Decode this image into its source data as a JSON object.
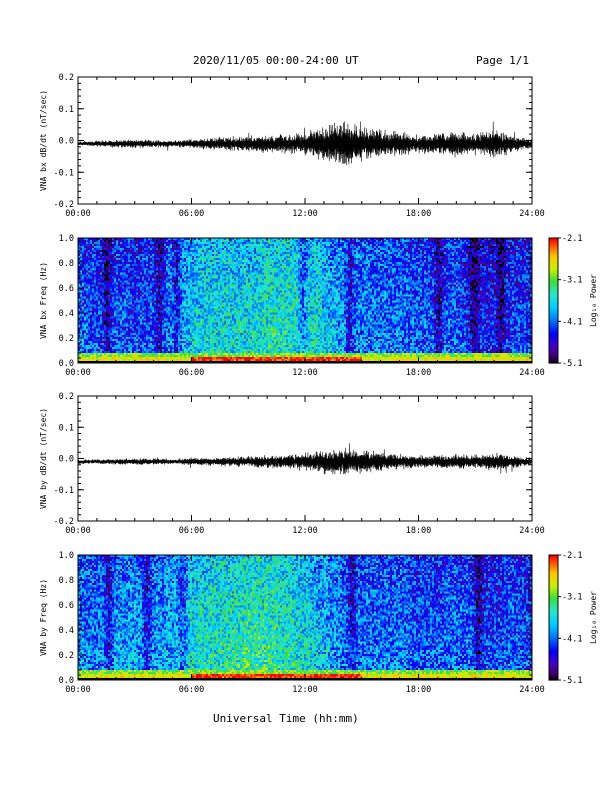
{
  "header": {
    "date_range": "2020/11/05  00:00-24:00 UT",
    "page": "Page 1/1"
  },
  "x_axis": {
    "title": "Universal Time (hh:mm)",
    "ticks": [
      0,
      6,
      12,
      18,
      24
    ],
    "tick_labels": [
      "00:00",
      "06:00",
      "12:00",
      "18:00",
      "24:00"
    ],
    "range": [
      0,
      24
    ]
  },
  "colorbar": {
    "label": "Log₁₀ Power",
    "ticks": [
      -2.1,
      -3.1,
      -4.1,
      -5.1
    ],
    "tick_labels": [
      "-2.1",
      "-3.1",
      "-4.1",
      "-5.1"
    ],
    "range": [
      -5.1,
      -2.1
    ]
  },
  "chart_data": [
    {
      "type": "line",
      "ylabel": "VNA bx dB/dt (nT/sec)",
      "ylim": [
        -0.2,
        0.2
      ],
      "yticks": [
        -0.2,
        -0.1,
        0.0,
        0.1,
        0.2
      ],
      "ytick_labels": [
        "-0.2",
        "-0.1",
        "0.0",
        "0.1",
        "0.2"
      ],
      "series": [
        {
          "x": [
            0,
            1,
            2,
            3,
            4,
            5,
            6,
            7,
            8,
            9,
            10,
            11,
            12,
            13,
            14,
            15,
            16,
            17,
            18,
            19,
            20,
            21,
            22,
            23,
            24
          ],
          "amplitude": [
            0.005,
            0.006,
            0.008,
            0.009,
            0.008,
            0.007,
            0.01,
            0.012,
            0.014,
            0.016,
            0.018,
            0.02,
            0.022,
            0.04,
            0.045,
            0.035,
            0.03,
            0.025,
            0.02,
            0.022,
            0.025,
            0.02,
            0.03,
            0.02,
            0.01
          ],
          "y_mean": -0.01,
          "peak_max": 0.06,
          "peak_min": -0.08
        }
      ]
    },
    {
      "type": "heatmap",
      "ylabel": "VNA bx Freq (Hz)",
      "ylim": [
        0,
        1.0
      ],
      "yticks": [
        0.0,
        0.2,
        0.4,
        0.6,
        0.8,
        1.0
      ],
      "ytick_labels": [
        "0.0",
        "0.2",
        "0.4",
        "0.6",
        "0.8",
        "1.0"
      ],
      "zlim": [
        -5.1,
        -2.1
      ],
      "hour_power": [
        -4.0,
        -4.2,
        -4.1,
        -4.2,
        -4.1,
        -3.9,
        -3.6,
        -3.5,
        -3.5,
        -3.5,
        -3.4,
        -3.4,
        -3.4,
        -3.6,
        -3.8,
        -3.9,
        -4.0,
        -4.0,
        -4.1,
        -4.1,
        -4.1,
        -4.3,
        -4.3,
        -4.2,
        -4.2
      ],
      "dark_bands_hours": [
        1.5,
        4.3,
        5.2,
        11.9,
        14.4,
        19.1,
        21.0,
        22.4
      ]
    },
    {
      "type": "line",
      "ylabel": "VNA by dB/dt (nT/sec)",
      "ylim": [
        -0.2,
        0.2
      ],
      "yticks": [
        -0.2,
        -0.1,
        0.0,
        0.1,
        0.2
      ],
      "ytick_labels": [
        "-0.2",
        "-0.1",
        "0.0",
        "0.1",
        "0.2"
      ],
      "series": [
        {
          "x": [
            0,
            1,
            2,
            3,
            4,
            5,
            6,
            7,
            8,
            9,
            10,
            11,
            12,
            13,
            14,
            15,
            16,
            17,
            18,
            19,
            20,
            21,
            22,
            23,
            24
          ],
          "amplitude": [
            0.005,
            0.005,
            0.006,
            0.007,
            0.007,
            0.006,
            0.008,
            0.009,
            0.01,
            0.012,
            0.014,
            0.016,
            0.018,
            0.025,
            0.03,
            0.025,
            0.02,
            0.016,
            0.014,
            0.014,
            0.016,
            0.014,
            0.02,
            0.014,
            0.008
          ],
          "y_mean": -0.01,
          "peak_max": 0.05,
          "peak_min": -0.05
        }
      ]
    },
    {
      "type": "heatmap",
      "ylabel": "VNA by Freq (Hz)",
      "ylim": [
        0,
        1.0
      ],
      "yticks": [
        0.0,
        0.2,
        0.4,
        0.6,
        0.8,
        1.0
      ],
      "ytick_labels": [
        "0.0",
        "0.2",
        "0.4",
        "0.6",
        "0.8",
        "1.0"
      ],
      "zlim": [
        -5.1,
        -2.1
      ],
      "hour_power": [
        -3.9,
        -4.0,
        -3.8,
        -3.8,
        -3.9,
        -3.7,
        -3.5,
        -3.4,
        -3.4,
        -3.3,
        -3.3,
        -3.4,
        -3.5,
        -3.7,
        -3.9,
        -4.0,
        -4.0,
        -4.0,
        -4.1,
        -4.1,
        -4.0,
        -4.1,
        -4.2,
        -4.1,
        -4.2
      ],
      "dark_bands_hours": [
        1.6,
        3.6,
        5.5,
        14.5,
        21.2
      ]
    }
  ]
}
